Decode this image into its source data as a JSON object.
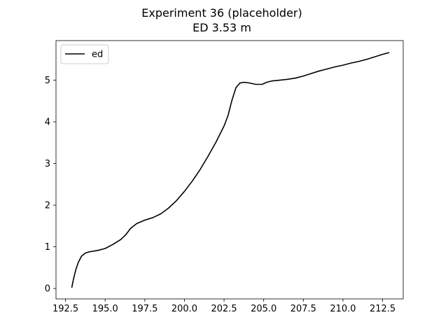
{
  "chart_data": {
    "type": "line",
    "title": "Experiment 36 (placeholder)",
    "subtitle": "ED 3.53 m",
    "xlabel": "",
    "ylabel": "",
    "xlim": [
      191.9,
      213.8
    ],
    "ylim": [
      -0.25,
      5.95
    ],
    "xticks": [
      192.5,
      195.0,
      197.5,
      200.0,
      202.5,
      205.0,
      207.5,
      210.0,
      212.5
    ],
    "xtick_labels": [
      "192.5",
      "195.0",
      "197.5",
      "200.0",
      "202.5",
      "205.0",
      "207.5",
      "210.0",
      "212.5"
    ],
    "yticks": [
      0,
      1,
      2,
      3,
      4,
      5
    ],
    "ytick_labels": [
      "0",
      "1",
      "2",
      "3",
      "4",
      "5"
    ],
    "grid": false,
    "legend_position": "upper-left",
    "series": [
      {
        "name": "ed",
        "color": "#000000",
        "x": [
          192.9,
          193.0,
          193.15,
          193.3,
          193.5,
          193.75,
          194.0,
          194.5,
          195.0,
          195.5,
          196.0,
          196.3,
          196.6,
          197.0,
          197.5,
          198.0,
          198.5,
          199.0,
          199.5,
          200.0,
          200.5,
          201.0,
          201.5,
          202.0,
          202.5,
          202.75,
          203.0,
          203.25,
          203.5,
          203.75,
          204.0,
          204.5,
          204.9,
          205.2,
          205.5,
          206.0,
          206.5,
          207.0,
          207.5,
          208.0,
          208.5,
          209.0,
          209.5,
          210.0,
          210.5,
          211.0,
          211.5,
          212.0,
          212.5,
          212.9
        ],
        "y": [
          0.03,
          0.22,
          0.45,
          0.62,
          0.77,
          0.85,
          0.88,
          0.91,
          0.96,
          1.06,
          1.18,
          1.29,
          1.44,
          1.56,
          1.64,
          1.7,
          1.79,
          1.93,
          2.11,
          2.33,
          2.58,
          2.86,
          3.18,
          3.52,
          3.9,
          4.15,
          4.52,
          4.82,
          4.93,
          4.95,
          4.94,
          4.9,
          4.9,
          4.95,
          4.98,
          5.0,
          5.02,
          5.05,
          5.1,
          5.16,
          5.22,
          5.27,
          5.32,
          5.36,
          5.41,
          5.45,
          5.5,
          5.56,
          5.62,
          5.66
        ]
      }
    ]
  }
}
